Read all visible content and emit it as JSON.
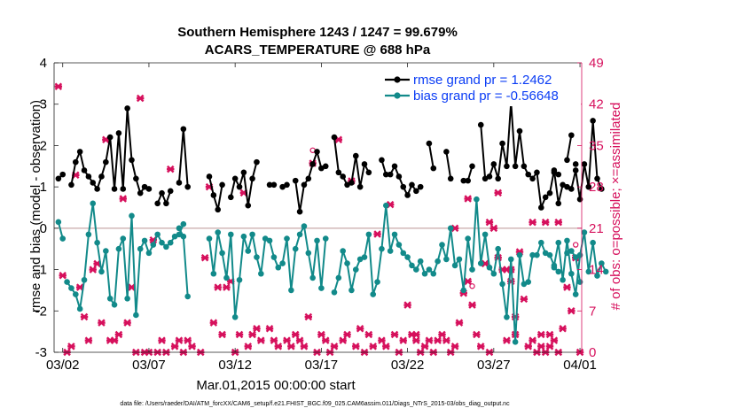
{
  "chart_data": {
    "type": "line",
    "title_line1": "Southern Hemisphere 1243 / 1247 = 99.679%",
    "title_line2": "ACARS_TEMPERATURE @ 688 hPa",
    "ylabel_left": "rmse and bias (model - observation)",
    "ylabel_right": "# of obs: o=possible; ×=assimilated",
    "xlabel": "Mar.01,2015 00:00:00 start",
    "footnote": "data file: /Users/raeder/DAI/ATM_forcXX/CAM6_setup/f.e21.FHIST_BGC.f09_025.CAM6assim.011/Diags_NTrS_2015-03/obs_diag_output.nc",
    "ylim_left": [
      -3,
      4
    ],
    "ylim_right": [
      0,
      49
    ],
    "xlim": [
      0.5,
      31.1
    ],
    "left_ticks": [
      "4",
      "3",
      "2",
      "1",
      "0",
      "-1",
      "-2",
      "-3"
    ],
    "right_ticks": [
      "49",
      "42",
      "35",
      "28",
      "21",
      "14",
      "7",
      "0"
    ],
    "x_ticks": [
      {
        "x": 1,
        "label": "03/02"
      },
      {
        "x": 6,
        "label": "03/07"
      },
      {
        "x": 11,
        "label": "03/12"
      },
      {
        "x": 16,
        "label": "03/17"
      },
      {
        "x": 21,
        "label": "03/22"
      },
      {
        "x": 26,
        "label": "03/27"
      },
      {
        "x": 31,
        "label": "04/01"
      }
    ],
    "legend": {
      "placement": "top-right",
      "rmse_label": "rmse grand pr = 1.2462",
      "bias_label": "bias grand pr = -0.56648"
    },
    "colors": {
      "rmse": "#000000",
      "bias": "#128a8a",
      "obs": "#d6105c",
      "zero_line": "#c8a8a8"
    },
    "x_step_days": 0.25,
    "rmse_segments": [
      {
        "x0": 0.75,
        "values": [
          1.2,
          1.3,
          null,
          1.05,
          1.6,
          1.85,
          1.4,
          1.25,
          1.1,
          0.95,
          1.25,
          1.6,
          2.2,
          0.95,
          2.3,
          0.95,
          2.9,
          1.65,
          1.2,
          0.85,
          1.0,
          0.95,
          null,
          0.6,
          0.85,
          0.6,
          0.9
        ]
      },
      {
        "x0": 7.75,
        "values": [
          1.1,
          2.4,
          1.0
        ]
      },
      {
        "x0": 9.5,
        "values": [
          1.25,
          0.8,
          0.45,
          1.05,
          null,
          0.75,
          1.2,
          1.0,
          1.35,
          0.55,
          1.2,
          1.6
        ]
      },
      {
        "x0": 13.0,
        "values": [
          1.05,
          1.05
        ]
      },
      {
        "x0": 13.75,
        "values": [
          1.0,
          1.05,
          null,
          1.15,
          0.4,
          1.05,
          1.2,
          1.55,
          1.85,
          1.45,
          1.5,
          null,
          2.2,
          1.35,
          1.25,
          1.05,
          1.1,
          1.75,
          1.0,
          1.55,
          1.35
        ]
      },
      {
        "x0": 19.5,
        "values": [
          1.65,
          1.3,
          1.3,
          1.5,
          1.25,
          1.0,
          0.8,
          1.05,
          0.9,
          1.0
        ]
      },
      {
        "x0": 22.25,
        "values": [
          2.05,
          1.45
        ]
      },
      {
        "x0": 23.25,
        "values": [
          1.85,
          1.2
        ]
      },
      {
        "x0": 24.25,
        "values": [
          1.15,
          1.15,
          1.5
        ]
      },
      {
        "x0": 25.25,
        "values": [
          2.5,
          1.2,
          1.25,
          1.55,
          1.2,
          2.05,
          1.5,
          3.05,
          1.5,
          2.35,
          1.5,
          1.3,
          1.2,
          1.35,
          0.5,
          0.75,
          0.85,
          1.4,
          0.6,
          1.05,
          1.0,
          0.95,
          1.4,
          0.7,
          1.55,
          1.0,
          2.6,
          1.2,
          0.95
        ]
      },
      {
        "x0": 29.5,
        "values": [
          1.35,
          1.3
        ]
      },
      {
        "x0": 30.25,
        "values": [
          1.65,
          2.25
        ]
      },
      {
        "x0": 30.75,
        "values": [
          1.55
        ]
      }
    ],
    "bias_segments": [
      {
        "x0": 0.75,
        "values": [
          0.15,
          -0.25
        ]
      },
      {
        "x0": 1.25,
        "values": [
          -1.3,
          -1.45,
          -1.6,
          -1.95,
          -1.25,
          -0.15,
          0.6,
          -0.35,
          -1.05,
          -0.55,
          -1.7,
          -1.85,
          -0.5,
          -0.25,
          -1.7,
          0.3,
          -2.1,
          -0.5,
          -0.3,
          -0.6,
          -0.4,
          -0.15,
          -0.35,
          -0.45,
          -0.35,
          -0.2,
          -0.15,
          0.1
        ]
      },
      {
        "x0": 7.75,
        "values": [
          0.0,
          -0.2,
          -1.65
        ]
      },
      {
        "x0": 9.5,
        "values": [
          -0.25,
          -1.1,
          -0.1,
          -0.6,
          -1.2,
          -0.15,
          -2.15,
          -1.25,
          -0.2,
          -0.55,
          -0.15,
          -0.7,
          -1.1,
          -0.25,
          -0.3,
          -0.7,
          -0.95,
          -0.85,
          -0.25,
          -1.5,
          -0.5,
          -0.15,
          0.05,
          -0.6,
          -1.2,
          -0.3,
          -1.45,
          -0.25
        ]
      },
      {
        "x0": 16.75,
        "values": [
          -1.55,
          -1.2,
          -0.55,
          -0.85,
          -1.5,
          -1.0,
          -0.75,
          -0.7,
          -0.15,
          -1.6,
          -1.3,
          -0.5,
          0.55,
          -0.55,
          -0.15,
          -0.4,
          -0.6,
          -0.7,
          -0.9,
          -1.0,
          -0.8,
          -1.1,
          -1.0,
          -1.1,
          -0.8,
          -0.4,
          -0.75,
          0.0,
          -0.9,
          -0.75,
          -1.5,
          -0.25,
          -1.0,
          0.7,
          -0.85,
          -0.15,
          -0.95,
          -1.1,
          -0.5,
          -1.35,
          -2.15,
          -0.75,
          -2.75,
          -0.65,
          -1.35,
          -1.3,
          -0.65,
          -0.65,
          -0.35,
          -0.6,
          -0.65,
          -0.9,
          -0.35,
          -1.25,
          -0.3,
          -1.1,
          -1.6,
          -0.65,
          -0.1,
          -1.05,
          -0.35,
          -1.15,
          -0.85,
          -1.05
        ]
      },
      {
        "x0": 29.5,
        "values": [
          -0.95,
          -1.05
        ]
      },
      {
        "x0": 30.25,
        "values": [
          -0.6,
          -0.55,
          -0.7,
          -1.3
        ]
      }
    ],
    "obs_possible": [
      {
        "x": 15.5,
        "y": 33
      },
      {
        "x": 24.75,
        "y": 10
      },
      {
        "x": 30.75,
        "y": 17
      }
    ],
    "obs_assimilated": [
      {
        "x": 0.75,
        "y": 45
      },
      {
        "x": 1.0,
        "y": 13
      },
      {
        "x": 1.25,
        "y": 0
      },
      {
        "x": 1.5,
        "y": 1
      },
      {
        "x": 1.75,
        "y": 30
      },
      {
        "x": 2.0,
        "y": 11
      },
      {
        "x": 2.25,
        "y": 6
      },
      {
        "x": 2.5,
        "y": 2
      },
      {
        "x": 2.75,
        "y": 14
      },
      {
        "x": 3.0,
        "y": 15
      },
      {
        "x": 3.25,
        "y": 5
      },
      {
        "x": 3.5,
        "y": 36
      },
      {
        "x": 3.75,
        "y": 2
      },
      {
        "x": 4.0,
        "y": 2
      },
      {
        "x": 4.25,
        "y": 3
      },
      {
        "x": 4.5,
        "y": 26
      },
      {
        "x": 4.75,
        "y": 5
      },
      {
        "x": 5.0,
        "y": 11
      },
      {
        "x": 5.25,
        "y": 0
      },
      {
        "x": 5.5,
        "y": 43
      },
      {
        "x": 5.75,
        "y": 0
      },
      {
        "x": 6.0,
        "y": 0
      },
      {
        "x": 6.25,
        "y": 19
      },
      {
        "x": 6.5,
        "y": 0
      },
      {
        "x": 6.75,
        "y": 2
      },
      {
        "x": 7.0,
        "y": 0
      },
      {
        "x": 7.25,
        "y": 31
      },
      {
        "x": 7.5,
        "y": 1
      },
      {
        "x": 7.75,
        "y": 2
      },
      {
        "x": 8.0,
        "y": 0
      },
      {
        "x": 8.25,
        "y": 2
      },
      {
        "x": 8.5,
        "y": 1
      },
      {
        "x": 9.0,
        "y": 0
      },
      {
        "x": 9.25,
        "y": 16
      },
      {
        "x": 9.5,
        "y": 28
      },
      {
        "x": 9.75,
        "y": 5
      },
      {
        "x": 10.0,
        "y": 11
      },
      {
        "x": 10.25,
        "y": 3
      },
      {
        "x": 10.5,
        "y": 11
      },
      {
        "x": 10.75,
        "y": 12
      },
      {
        "x": 11.0,
        "y": 0
      },
      {
        "x": 11.25,
        "y": 3
      },
      {
        "x": 11.5,
        "y": 27
      },
      {
        "x": 11.75,
        "y": 1
      },
      {
        "x": 12.0,
        "y": 3
      },
      {
        "x": 12.5,
        "y": 2
      },
      {
        "x": 13.0,
        "y": 4
      },
      {
        "x": 13.5,
        "y": 1
      },
      {
        "x": 14.0,
        "y": 2
      },
      {
        "x": 14.5,
        "y": 3
      },
      {
        "x": 14.75,
        "y": 2
      },
      {
        "x": 15.0,
        "y": 1
      },
      {
        "x": 15.25,
        "y": 6
      },
      {
        "x": 15.5,
        "y": 32
      },
      {
        "x": 15.75,
        "y": 0
      },
      {
        "x": 16.0,
        "y": 3
      },
      {
        "x": 16.25,
        "y": 2
      },
      {
        "x": 16.5,
        "y": 0
      },
      {
        "x": 16.75,
        "y": 1
      },
      {
        "x": 17.0,
        "y": 36
      },
      {
        "x": 17.25,
        "y": 2
      },
      {
        "x": 17.5,
        "y": 3
      },
      {
        "x": 17.75,
        "y": 29
      },
      {
        "x": 18.0,
        "y": 1
      },
      {
        "x": 18.25,
        "y": 4
      },
      {
        "x": 18.5,
        "y": 0
      },
      {
        "x": 18.75,
        "y": 3
      },
      {
        "x": 19.0,
        "y": 1
      },
      {
        "x": 19.25,
        "y": 20
      },
      {
        "x": 19.5,
        "y": 2
      },
      {
        "x": 19.75,
        "y": 1
      },
      {
        "x": 20.0,
        "y": 25
      },
      {
        "x": 20.25,
        "y": 3
      },
      {
        "x": 20.5,
        "y": 0
      },
      {
        "x": 20.75,
        "y": 2
      },
      {
        "x": 21.0,
        "y": 8
      },
      {
        "x": 21.25,
        "y": 3
      },
      {
        "x": 21.5,
        "y": 2
      },
      {
        "x": 21.75,
        "y": 0
      },
      {
        "x": 22.0,
        "y": 1
      },
      {
        "x": 22.25,
        "y": 2
      },
      {
        "x": 22.5,
        "y": 0
      },
      {
        "x": 22.75,
        "y": 2
      },
      {
        "x": 23.0,
        "y": 3
      },
      {
        "x": 23.25,
        "y": 2
      },
      {
        "x": 23.5,
        "y": 0
      },
      {
        "x": 23.75,
        "y": 1
      },
      {
        "x": 24.0,
        "y": 5
      },
      {
        "x": 24.25,
        "y": 10
      },
      {
        "x": 24.5,
        "y": 12
      },
      {
        "x": 24.75,
        "y": 8
      },
      {
        "x": 25.0,
        "y": 3
      },
      {
        "x": 25.25,
        "y": 1
      },
      {
        "x": 25.5,
        "y": 15
      },
      {
        "x": 25.75,
        "y": 22
      },
      {
        "x": 26.0,
        "y": 21
      },
      {
        "x": 26.25,
        "y": 16
      },
      {
        "x": 26.5,
        "y": 14
      },
      {
        "x": 26.75,
        "y": 14
      },
      {
        "x": 27.0,
        "y": 12
      },
      {
        "x": 27.25,
        "y": 6
      },
      {
        "x": 27.5,
        "y": 17
      },
      {
        "x": 27.75,
        "y": 9
      },
      {
        "x": 28.0,
        "y": 1
      },
      {
        "x": 28.25,
        "y": 2
      },
      {
        "x": 28.5,
        "y": 0
      },
      {
        "x": 28.75,
        "y": 1
      },
      {
        "x": 29.0,
        "y": 0
      },
      {
        "x": 29.25,
        "y": 1
      },
      {
        "x": 29.5,
        "y": 2
      },
      {
        "x": 29.75,
        "y": 0
      },
      {
        "x": 30.0,
        "y": 4
      },
      {
        "x": 30.25,
        "y": 11
      },
      {
        "x": 30.5,
        "y": 7
      },
      {
        "x": 30.75,
        "y": 16
      },
      {
        "x": 31.0,
        "y": 0
      },
      {
        "x": 12.25,
        "y": 4
      },
      {
        "x": 13.25,
        "y": 2
      },
      {
        "x": 14.25,
        "y": 1
      },
      {
        "x": 25.75,
        "y": 0
      },
      {
        "x": 26.75,
        "y": 2
      },
      {
        "x": 27.25,
        "y": 3
      },
      {
        "x": 28.75,
        "y": 3
      },
      {
        "x": 29.25,
        "y": 3
      },
      {
        "x": 21.5,
        "y": 3
      },
      {
        "x": 23.75,
        "y": 21
      },
      {
        "x": 24.5,
        "y": 26
      },
      {
        "x": 26.25,
        "y": 27
      },
      {
        "x": 27.0,
        "y": 14
      },
      {
        "x": 28.25,
        "y": 22
      },
      {
        "x": 29.0,
        "y": 22
      },
      {
        "x": 29.75,
        "y": 22
      }
    ]
  }
}
